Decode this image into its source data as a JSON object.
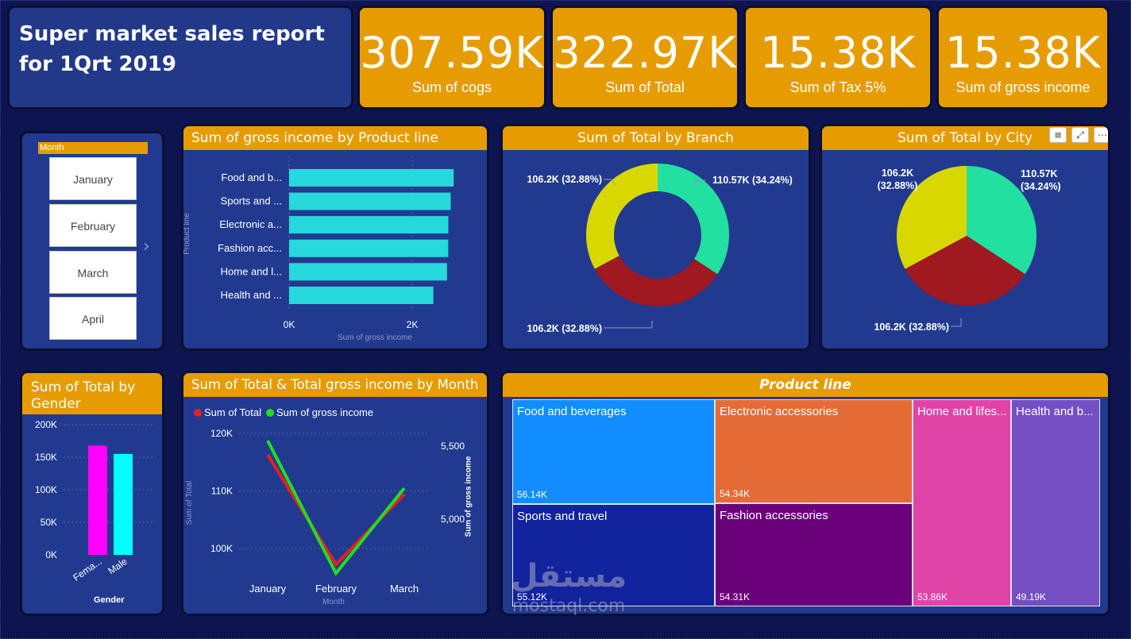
{
  "title": "Super market sales report for 1Qrt 2019",
  "kpis": [
    {
      "value": "307.59K",
      "label": "Sum of cogs"
    },
    {
      "value": "322.97K",
      "label": "Sum of Total"
    },
    {
      "value": "15.38K",
      "label": "Sum of Tax 5%"
    },
    {
      "value": "15.38K",
      "label": "Sum of gross income"
    }
  ],
  "slicer": {
    "header": "Month",
    "items": [
      "January",
      "February",
      "March",
      "April"
    ]
  },
  "product_chart": {
    "title": "Sum of gross income by Product line",
    "ylabel": "Product line",
    "xlabel": "Sum of gross income"
  },
  "branch_chart": {
    "title": "Sum of Total by Branch"
  },
  "city_chart": {
    "title": "Sum of Total by City"
  },
  "gender_chart": {
    "title": "Sum of Total by Gender",
    "xlabel": "Gender"
  },
  "month_chart": {
    "title": "Sum of Total & Total gross income by Month",
    "legend1": "Sum of Total",
    "legend2": "Sum of gross income",
    "ylabel_left": "Sum of Total",
    "ylabel_right": "Sum of gross income",
    "xlabel": "Month"
  },
  "treemap": {
    "title": "Product line"
  },
  "watermark": {
    "arabic": "مستقل",
    "latin": "mostaql.com"
  },
  "colors": {
    "accent": "#e69c00",
    "card": "#213a8f",
    "bar": "#26d9dc",
    "female": "#ff00ff",
    "male": "#00ffff",
    "line_total": "#e52020",
    "line_income": "#22dd22",
    "pie_green": "#22e0a0",
    "pie_red": "#a01820",
    "pie_yellow": "#d8d800"
  },
  "chart_data": [
    {
      "type": "bar",
      "title": "Sum of gross income by Product line",
      "categories": [
        "Food and b...",
        "Sports and ...",
        "Electronic a...",
        "Fashion acc...",
        "Home and l...",
        "Health and ..."
      ],
      "values": [
        2673.56,
        2624.9,
        2587.5,
        2585.99,
        2564.85,
        2342.56
      ],
      "xticks": [
        "0K",
        "2K"
      ],
      "xlim": [
        0,
        3000
      ],
      "xlabel": "Sum of gross income",
      "ylabel": "Product line"
    },
    {
      "type": "pie",
      "title": "Sum of Total by Branch",
      "donut": true,
      "labels": [
        "110.57K (34.24%)",
        "106.2K (32.88%)",
        "106.2K (32.88%)"
      ],
      "values": [
        110.57,
        106.2,
        106.2
      ],
      "colors": [
        "#22e0a0",
        "#a01820",
        "#d8d800"
      ]
    },
    {
      "type": "pie",
      "title": "Sum of Total by City",
      "labels": [
        "110.57K (34.24%)",
        "106.2K (32.88%)",
        "106.2K (32.88%)"
      ],
      "values": [
        110.57,
        106.2,
        106.2
      ],
      "colors": [
        "#22e0a0",
        "#a01820",
        "#d8d800"
      ]
    },
    {
      "type": "bar",
      "title": "Sum of Total by Gender",
      "categories": [
        "Fema...",
        "Male"
      ],
      "values": [
        167883,
        155084
      ],
      "ylim": [
        0,
        200000
      ],
      "yticks": [
        "0K",
        "50K",
        "100K",
        "150K",
        "200K"
      ],
      "xlabel": "Gender"
    },
    {
      "type": "line",
      "title": "Sum of Total & Total gross income by Month",
      "categories": [
        "January",
        "February",
        "March"
      ],
      "series": [
        {
          "name": "Sum of Total",
          "values": [
            116290,
            97219,
            109456
          ],
          "axis": "left"
        },
        {
          "name": "Sum of gross income",
          "values": [
            5537.7,
            4629.5,
            5212.2
          ],
          "axis": "right"
        }
      ],
      "ylim_left": [
        95000,
        120000
      ],
      "yticks_left": [
        "100K",
        "110K",
        "120K"
      ],
      "ylim_right": [
        4600,
        5600
      ],
      "yticks_right": [
        "5,000",
        "5,500"
      ],
      "xlabel": "Month",
      "ylabel_left": "Sum of Total",
      "ylabel_right": "Sum of gross income"
    },
    {
      "type": "table",
      "title": "Product line",
      "categories": [
        "Food and beverages",
        "Electronic accessories",
        "Sports and travel",
        "Fashion accessories",
        "Home and lifes...",
        "Health and b..."
      ],
      "value_labels": [
        "56.14K",
        "54.34K",
        "55.12K",
        "54.31K",
        "53.86K",
        "49.19K"
      ],
      "values": [
        56.14,
        54.34,
        55.12,
        54.31,
        53.86,
        49.19
      ]
    }
  ]
}
